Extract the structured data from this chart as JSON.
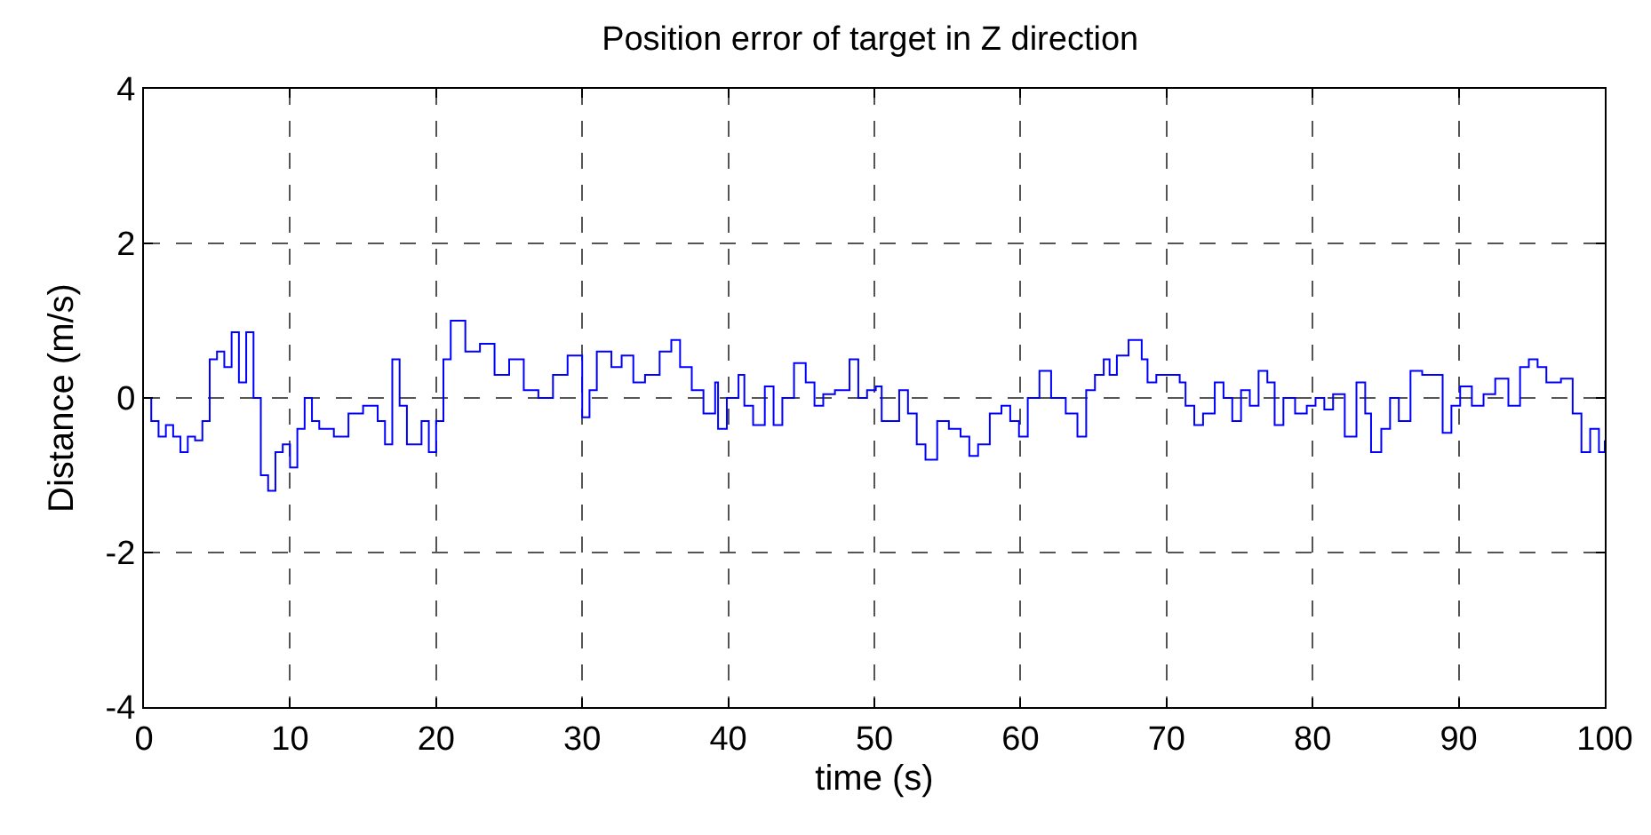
{
  "chart_data": {
    "type": "step",
    "title": "Position error of target in Z direction",
    "xlabel": "time (s)",
    "ylabel": "Distance (m/s)",
    "x": [
      0,
      0.5,
      1,
      1.5,
      2,
      2.5,
      3,
      3.5,
      4,
      4.5,
      5,
      5.5,
      6,
      6.5,
      7,
      7.5,
      8,
      8.5,
      9,
      9.5,
      10,
      10.5,
      11,
      11.5,
      12,
      13,
      14,
      15,
      16,
      16.5,
      17,
      17.5,
      18,
      19,
      19.5,
      20,
      20.5,
      21,
      22,
      23,
      24,
      25,
      26,
      27,
      28,
      29,
      30,
      30.5,
      31,
      32,
      32.7,
      33.5,
      34.3,
      35.3,
      36.1,
      36.7,
      37.5,
      38.3,
      39.1,
      39.3,
      39.9,
      40.7,
      41.1,
      41.7,
      42.5,
      43.1,
      43.7,
      44.5,
      45.3,
      45.9,
      46.5,
      47.3,
      48.3,
      48.9,
      49.5,
      50.1,
      50.5,
      51.1,
      51.7,
      52.3,
      52.9,
      53.5,
      54.3,
      55.1,
      55.9,
      56.5,
      57.1,
      57.9,
      58.7,
      59.3,
      59.9,
      60.5,
      61.3,
      62.1,
      63.1,
      63.9,
      64.5,
      65.1,
      65.7,
      66.1,
      66.6,
      67.4,
      68.3,
      68.7,
      69.3,
      70.1,
      70.9,
      71.3,
      71.9,
      72.5,
      73.3,
      73.9,
      74.5,
      75.1,
      75.7,
      76.3,
      76.9,
      77.4,
      78,
      78.8,
      79.6,
      80.2,
      80.8,
      81.4,
      82.2,
      83,
      83.6,
      84,
      84.7,
      85.3,
      85.9,
      86.7,
      87.5,
      88.3,
      88.9,
      89.5,
      90.1,
      90.9,
      91.7,
      92.5,
      93.4,
      94.2,
      94.8,
      95.4,
      96,
      97,
      97.8,
      98.4,
      99,
      99.6,
      100
    ],
    "series": [
      {
        "color": "#0000ff",
        "values": [
          0,
          -0.3,
          -0.5,
          -0.35,
          -0.5,
          -0.7,
          -0.5,
          -0.55,
          -0.3,
          0.5,
          0.6,
          0.4,
          0.85,
          0.2,
          0.85,
          0,
          -1,
          -1.2,
          -0.7,
          -0.6,
          -0.9,
          -0.4,
          0,
          -0.3,
          -0.4,
          -0.5,
          -0.2,
          -0.1,
          -0.3,
          -0.6,
          0.5,
          -0.1,
          -0.6,
          -0.3,
          -0.7,
          -0.3,
          0.5,
          1,
          0.6,
          0.7,
          0.3,
          0.5,
          0.1,
          0,
          0.3,
          0.55,
          -0.25,
          0.1,
          0.6,
          0.4,
          0.55,
          0.2,
          0.3,
          0.6,
          0.75,
          0.4,
          0.1,
          -0.2,
          0.2,
          -0.4,
          0,
          0.3,
          -0.1,
          -0.35,
          0.15,
          -0.35,
          0,
          0.45,
          0.2,
          -0.1,
          0.05,
          0.1,
          0.5,
          0,
          0.1,
          0.15,
          -0.3,
          -0.3,
          0.1,
          -0.2,
          -0.6,
          -0.8,
          -0.3,
          -0.4,
          -0.5,
          -0.75,
          -0.6,
          -0.2,
          -0.1,
          -0.3,
          -0.5,
          0,
          0.35,
          0,
          -0.2,
          -0.5,
          0.1,
          0.3,
          0.5,
          0.3,
          0.55,
          0.75,
          0.5,
          0.2,
          0.3,
          0.3,
          0.2,
          -0.1,
          -0.35,
          -0.2,
          0.2,
          0,
          -0.3,
          0.1,
          -0.1,
          0.35,
          0.2,
          -0.35,
          0,
          -0.2,
          -0.1,
          0,
          -0.15,
          0.05,
          -0.5,
          0.2,
          -0.2,
          -0.7,
          -0.4,
          0,
          -0.3,
          0.35,
          0.3,
          0.3,
          -0.45,
          -0.1,
          0.15,
          -0.1,
          0.05,
          0.25,
          -0.1,
          0.4,
          0.5,
          0.4,
          0.2,
          0.25,
          -0.2,
          -0.7,
          -0.4,
          -0.7,
          -0.55
        ]
      }
    ],
    "xlim": [
      0,
      100
    ],
    "xticks": [
      0,
      10,
      20,
      30,
      40,
      50,
      60,
      70,
      80,
      90,
      100
    ],
    "ylim": [
      -4,
      4
    ],
    "yticks": [
      -4,
      -2,
      0,
      2,
      4
    ],
    "grid": true,
    "line_style": "solid"
  }
}
